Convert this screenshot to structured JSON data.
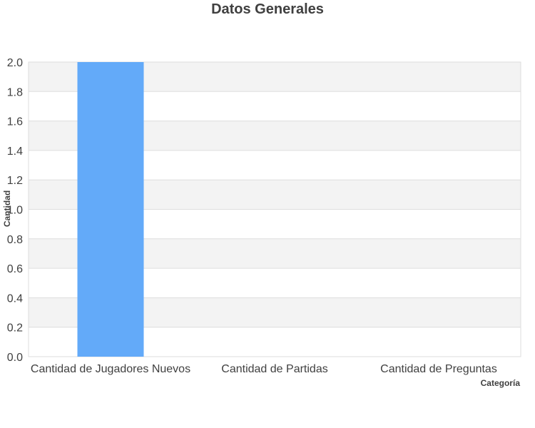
{
  "chart_data": {
    "type": "bar",
    "title": "Datos Generales",
    "categories": [
      "Cantidad de Jugadores Nuevos",
      "Cantidad de Partidas",
      "Cantidad de Preguntas"
    ],
    "values": [
      2,
      0,
      0
    ],
    "xlabel": "Categoría",
    "ylabel": "Cantidad",
    "ylim": [
      0,
      2
    ],
    "yticks": [
      "0.0",
      "0.2",
      "0.4",
      "0.6",
      "0.8",
      "1.0",
      "1.2",
      "1.4",
      "1.6",
      "1.8",
      "2.0"
    ],
    "grid": true,
    "bar_color": "#63aaf9",
    "band_color": "#f3f3f3",
    "grid_color": "#dedede"
  }
}
